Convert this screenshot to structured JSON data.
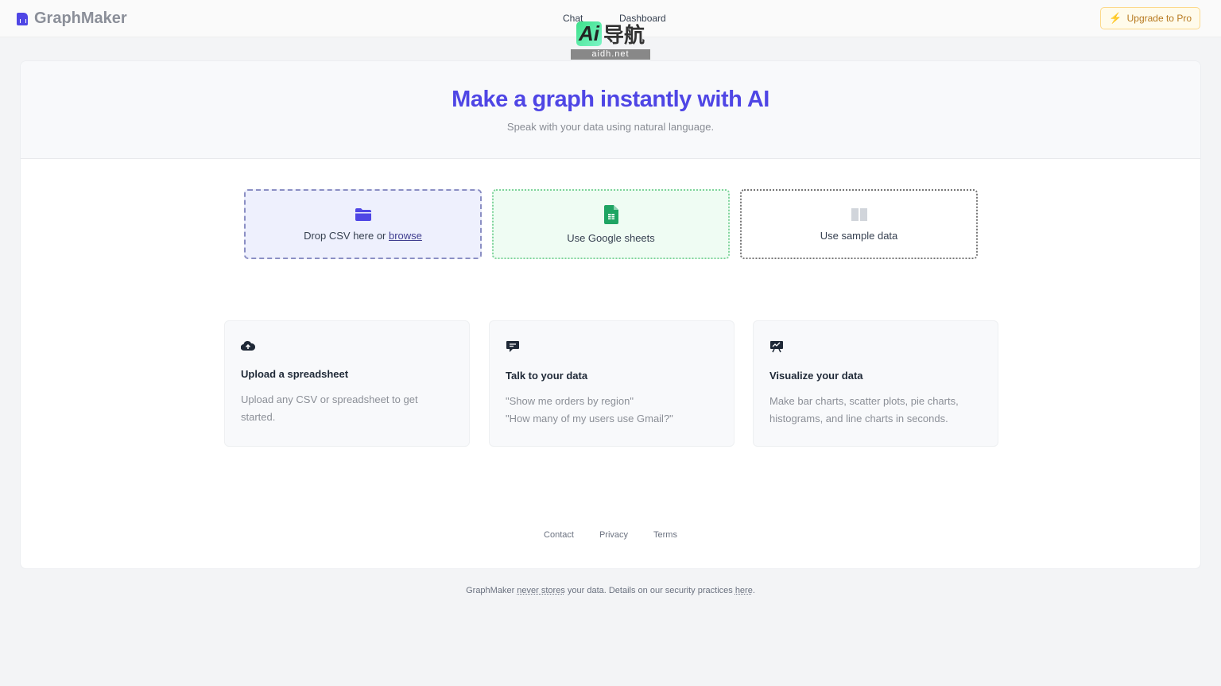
{
  "nav": {
    "brand": "GraphMaker",
    "links": [
      "Chat",
      "Dashboard"
    ],
    "upgrade": "Upgrade to Pro",
    "accent": "#4f46e5"
  },
  "watermark": {
    "text": "Ai导航",
    "url": "aidh.net"
  },
  "hero": {
    "title": "Make a graph instantly with AI",
    "subtitle": "Speak with your data using natural language."
  },
  "options": {
    "drop_prefix": "Drop CSV here or ",
    "drop_link": "browse",
    "sheets": "Use Google sheets",
    "sample": "Use sample data"
  },
  "features": [
    {
      "icon": "cloud-upload-icon",
      "title": "Upload a spreadsheet",
      "lines": [
        "Upload any CSV or spreadsheet to get started."
      ]
    },
    {
      "icon": "chat-bubble-icon",
      "title": "Talk to your data",
      "lines": [
        "\"Show me orders by region\"",
        "\"How many of my users use Gmail?\""
      ]
    },
    {
      "icon": "presentation-chart-icon",
      "title": "Visualize your data",
      "lines": [
        "Make bar charts, scatter plots, pie charts, histograms, and line charts in seconds."
      ]
    }
  ],
  "footer": {
    "links": [
      "Contact",
      "Privacy",
      "Terms"
    ]
  },
  "bottom": {
    "p1": "GraphMaker ",
    "link1": "never stores",
    "p2": " your data. Details on our security practices ",
    "link2": "here",
    "p3": "."
  }
}
